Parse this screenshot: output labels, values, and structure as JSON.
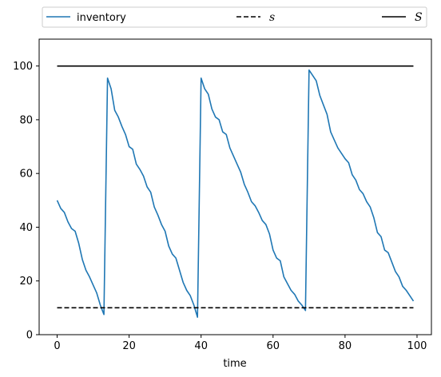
{
  "chart_data": {
    "type": "line",
    "title": "",
    "xlabel": "time",
    "ylabel": "",
    "xlim": [
      -5,
      104
    ],
    "ylim": [
      0,
      110
    ],
    "xticks": [
      0,
      20,
      40,
      60,
      80,
      100
    ],
    "yticks": [
      0,
      20,
      40,
      60,
      80,
      100
    ],
    "grid": false,
    "legend_position": "top, above plot area (three columns)",
    "series": [
      {
        "name": "inventory",
        "color": "#1f77b4",
        "style": "solid",
        "x": [
          0,
          1,
          2,
          3,
          4,
          5,
          6,
          7,
          8,
          9,
          10,
          11,
          12,
          13,
          14,
          15,
          16,
          17,
          18,
          19,
          20,
          21,
          22,
          23,
          24,
          25,
          26,
          27,
          28,
          29,
          30,
          31,
          32,
          33,
          34,
          35,
          36,
          37,
          38,
          39,
          40,
          41,
          42,
          43,
          44,
          45,
          46,
          47,
          48,
          49,
          50,
          51,
          52,
          53,
          54,
          55,
          56,
          57,
          58,
          59,
          60,
          61,
          62,
          63,
          64,
          65,
          66,
          67,
          68,
          69,
          70,
          71,
          72,
          73,
          74,
          75,
          76,
          77,
          78,
          79,
          80,
          81,
          82,
          83,
          84,
          85,
          86,
          87,
          88,
          89,
          90,
          91,
          92,
          93,
          94,
          95,
          96,
          97,
          98,
          99
        ],
        "y": [
          50,
          47,
          45.5,
          42,
          39.5,
          38.5,
          34,
          28,
          24,
          21.5,
          18.5,
          15.5,
          11,
          7.5,
          95.5,
          91.5,
          83.5,
          81,
          77.5,
          74.5,
          70,
          69,
          63.5,
          61.5,
          59,
          55,
          53,
          47.5,
          44.5,
          41,
          38.5,
          33,
          30,
          28.5,
          24,
          19.5,
          16.5,
          14.5,
          11,
          6.5,
          95.5,
          91.5,
          89.5,
          84,
          81,
          80,
          75.5,
          74.5,
          69.5,
          66.5,
          63.5,
          60.5,
          56,
          53,
          49.5,
          48,
          45.5,
          42.5,
          41,
          37.5,
          31.5,
          28.5,
          27.5,
          21.5,
          19,
          16.5,
          15,
          12.5,
          11,
          9,
          98.5,
          96.5,
          94.5,
          89,
          85.5,
          82,
          75.5,
          72.5,
          69.5,
          67.5,
          65.5,
          64,
          59.5,
          57.5,
          54,
          52.5,
          49.5,
          47.5,
          43.5,
          38,
          36.5,
          31.5,
          30.5,
          27,
          23.5,
          21.5,
          18,
          16.5,
          14.5,
          12.5
        ]
      },
      {
        "name": "s",
        "color": "#000000",
        "style": "dashed",
        "x": [
          0,
          99
        ],
        "y": [
          10,
          10
        ]
      },
      {
        "name": "S",
        "color": "#000000",
        "style": "solid",
        "x": [
          0,
          99
        ],
        "y": [
          100,
          100
        ]
      }
    ]
  }
}
